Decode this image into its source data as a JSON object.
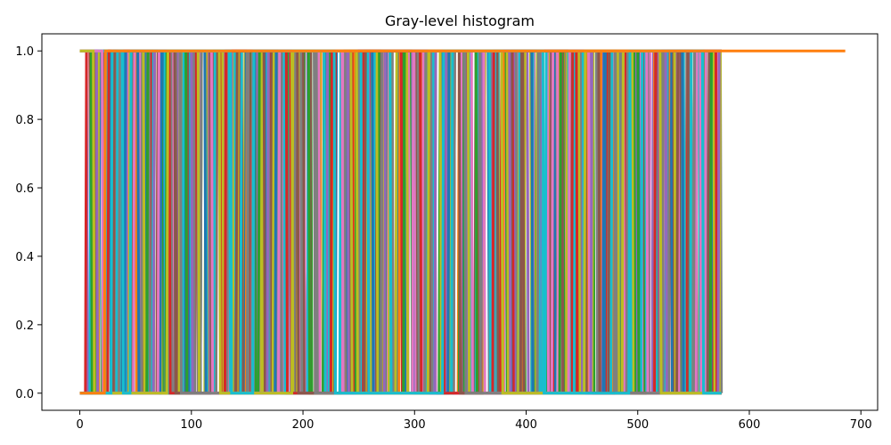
{
  "chart_data": {
    "type": "line",
    "title": "Gray-level histogram",
    "xlabel": "",
    "ylabel": "",
    "xlim": [
      -34,
      715
    ],
    "ylim": [
      -0.05,
      1.05
    ],
    "x_ticks": [
      0,
      100,
      200,
      300,
      400,
      500,
      600,
      700
    ],
    "y_ticks": [
      0.0,
      0.2,
      0.4,
      0.6,
      0.8,
      1.0
    ],
    "x_tick_labels": [
      "0",
      "100",
      "200",
      "300",
      "400",
      "500",
      "600",
      "700"
    ],
    "y_tick_labels": [
      "0.0",
      "0.2",
      "0.4",
      "0.6",
      "0.8",
      "1.0"
    ],
    "grid": false,
    "legend": "none",
    "series_note_count": 30,
    "palette": [
      "#1f77b4",
      "#ff7f0e",
      "#2ca02c",
      "#d62728",
      "#9467bd",
      "#8c564b",
      "#e377c2",
      "#7f7f7f",
      "#bcbd22",
      "#17becf"
    ],
    "series": [
      {
        "color": "#1f77b4",
        "x": [
          0,
          40,
          41,
          52,
          53,
          72,
          73,
          112,
          113,
          175,
          176,
          262,
          263,
          330,
          331,
          405,
          406,
          470,
          471,
          540,
          541,
          575
        ],
        "values": [
          0,
          0,
          1,
          1,
          0,
          0,
          1,
          1,
          0,
          0,
          1,
          1,
          0,
          0,
          1,
          1,
          0,
          0,
          1,
          1,
          0,
          0
        ]
      },
      {
        "color": "#2ca02c",
        "x": [
          0,
          10,
          11,
          60,
          61,
          95,
          96,
          160,
          161,
          205,
          206,
          290,
          291,
          355,
          356,
          430,
          431,
          500,
          501,
          565,
          566,
          575
        ],
        "values": [
          1,
          1,
          0,
          0,
          1,
          1,
          0,
          0,
          1,
          1,
          0,
          0,
          1,
          1,
          0,
          0,
          1,
          1,
          0,
          0,
          1,
          1
        ]
      },
      {
        "color": "#d62728",
        "x": [
          0,
          25,
          26,
          80,
          81,
          130,
          131,
          185,
          186,
          225,
          226,
          305,
          306,
          370,
          371,
          445,
          446,
          515,
          516,
          570,
          571,
          575
        ],
        "values": [
          0,
          0,
          1,
          1,
          0,
          0,
          1,
          1,
          0,
          0,
          1,
          1,
          0,
          0,
          1,
          1,
          0,
          0,
          1,
          1,
          0,
          0
        ]
      },
      {
        "color": "#9467bd",
        "x": [
          0,
          15,
          16,
          66,
          67,
          100,
          101,
          168,
          169,
          240,
          241,
          318,
          319,
          385,
          386,
          458,
          459,
          525,
          526,
          572,
          573,
          575
        ],
        "values": [
          1,
          1,
          0,
          0,
          1,
          1,
          0,
          0,
          1,
          1,
          0,
          0,
          1,
          1,
          0,
          0,
          1,
          1,
          0,
          0,
          1,
          1
        ]
      },
      {
        "color": "#8c564b",
        "x": [
          0,
          30,
          31,
          85,
          86,
          140,
          141,
          195,
          196,
          255,
          256,
          340,
          341,
          395,
          396,
          465,
          466,
          535,
          536,
          575
        ],
        "values": [
          0,
          0,
          1,
          1,
          0,
          0,
          1,
          1,
          0,
          0,
          1,
          1,
          0,
          0,
          1,
          1,
          0,
          0,
          1,
          1
        ]
      },
      {
        "color": "#e377c2",
        "x": [
          0,
          20,
          21,
          70,
          71,
          118,
          119,
          178,
          179,
          235,
          236,
          298,
          299,
          362,
          363,
          438,
          439,
          508,
          509,
          560,
          561,
          575
        ],
        "values": [
          1,
          1,
          0,
          0,
          1,
          1,
          0,
          0,
          1,
          1,
          0,
          0,
          1,
          1,
          0,
          0,
          1,
          1,
          0,
          0,
          1,
          1
        ]
      },
      {
        "color": "#7f7f7f",
        "x": [
          0,
          35,
          36,
          90,
          91,
          150,
          151,
          210,
          211,
          270,
          271,
          345,
          346,
          410,
          411,
          480,
          481,
          550,
          551,
          575
        ],
        "values": [
          0,
          0,
          1,
          1,
          0,
          0,
          1,
          1,
          0,
          0,
          1,
          1,
          0,
          0,
          1,
          1,
          0,
          0,
          1,
          1
        ]
      },
      {
        "color": "#bcbd22",
        "x": [
          0,
          12,
          13,
          78,
          79,
          125,
          126,
          190,
          191,
          248,
          249,
          312,
          313,
          378,
          379,
          452,
          453,
          520,
          521,
          575
        ],
        "values": [
          1,
          1,
          0,
          0,
          1,
          1,
          0,
          0,
          1,
          1,
          0,
          0,
          1,
          1,
          0,
          0,
          1,
          1,
          0,
          0
        ]
      },
      {
        "color": "#17becf",
        "x": [
          0,
          28,
          29,
          38,
          39,
          45,
          46,
          135,
          136,
          155,
          156,
          228,
          229,
          325,
          326,
          415,
          416,
          492,
          493,
          558,
          559,
          575
        ],
        "values": [
          0,
          0,
          1,
          1,
          0,
          0,
          1,
          1,
          0,
          0,
          1,
          1,
          0,
          0,
          1,
          1,
          0,
          0,
          1,
          1,
          0,
          0
        ]
      },
      {
        "color": "#ff7f0e",
        "x": [
          0,
          22,
          23,
          686
        ],
        "values": [
          0,
          0,
          1,
          1
        ]
      }
    ]
  }
}
